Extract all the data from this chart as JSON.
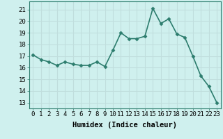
{
  "x": [
    0,
    1,
    2,
    3,
    4,
    5,
    6,
    7,
    8,
    9,
    10,
    11,
    12,
    13,
    14,
    15,
    16,
    17,
    18,
    19,
    20,
    21,
    22,
    23
  ],
  "y": [
    17.1,
    16.7,
    16.5,
    16.2,
    16.5,
    16.3,
    16.2,
    16.2,
    16.5,
    16.1,
    17.5,
    19.0,
    18.5,
    18.5,
    18.7,
    21.1,
    19.8,
    20.2,
    18.9,
    18.6,
    17.0,
    15.3,
    14.4,
    13.0
  ],
  "line_color": "#2d7d6e",
  "bg_color": "#cff0ee",
  "grid_color": "#c0dedd",
  "xlabel": "Humidex (Indice chaleur)",
  "ylabel_ticks": [
    13,
    14,
    15,
    16,
    17,
    18,
    19,
    20,
    21
  ],
  "ylim": [
    12.5,
    21.7
  ],
  "xlim": [
    -0.5,
    23.5
  ],
  "marker": "D",
  "marker_size": 2.5,
  "line_width": 1.2,
  "tick_fontsize": 6.5,
  "xlabel_fontsize": 7.5
}
